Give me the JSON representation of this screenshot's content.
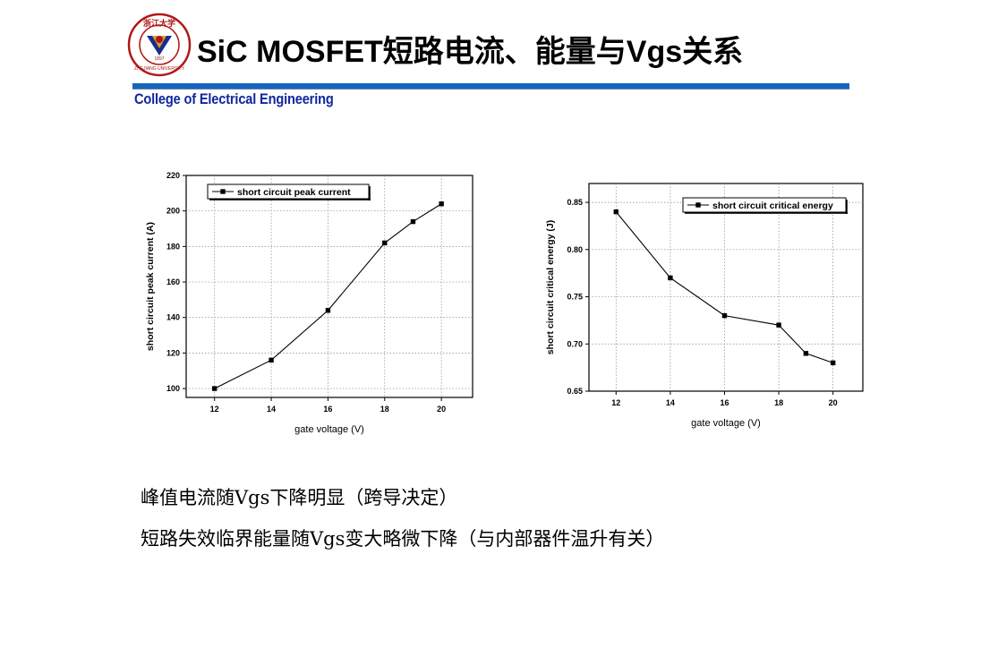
{
  "header": {
    "title": "SiC MOSFET短路电流、能量与Vgs关系",
    "subtitle": "College of Electrical Engineering",
    "logo": {
      "icon": "university-seal-icon",
      "text_top": "浙江大学",
      "text_bottom": "ZHEJIANG UNIVERSITY",
      "year": "1897"
    },
    "accent_color": "#1565c0",
    "subtitle_color": "#10279e"
  },
  "notes": [
    "峰值电流随Vgs下降明显（跨导决定）",
    "短路失效临界能量随Vgs变大略微下降（与内部器件温升有关）"
  ],
  "chart_data": [
    {
      "type": "line",
      "xlabel": "gate voltage (V)",
      "ylabel": "short circuit peak current (A)",
      "xlim": [
        11,
        21.1
      ],
      "ylim": [
        95,
        220
      ],
      "xticks": [
        12,
        14,
        16,
        18,
        20
      ],
      "yticks": [
        100,
        120,
        140,
        160,
        180,
        200,
        220
      ],
      "grid": true,
      "legend": "top-left",
      "series": [
        {
          "name": "short circuit peak current",
          "x": [
            12,
            14,
            16,
            18,
            19,
            20
          ],
          "values": [
            100,
            116,
            144,
            182,
            194,
            204
          ]
        }
      ]
    },
    {
      "type": "line",
      "xlabel": "gate voltage (V)",
      "ylabel": "short circuit critical energy (J)",
      "xlim": [
        11,
        21.1
      ],
      "ylim": [
        0.65,
        0.87
      ],
      "xticks": [
        12,
        14,
        16,
        18,
        20
      ],
      "yticks": [
        0.65,
        0.7,
        0.75,
        0.8,
        0.85
      ],
      "grid": true,
      "legend": "top-right",
      "series": [
        {
          "name": "short circuit critical energy",
          "x": [
            12,
            14,
            16,
            18,
            19,
            20
          ],
          "values": [
            0.84,
            0.77,
            0.73,
            0.72,
            0.69,
            0.68
          ]
        }
      ]
    }
  ]
}
